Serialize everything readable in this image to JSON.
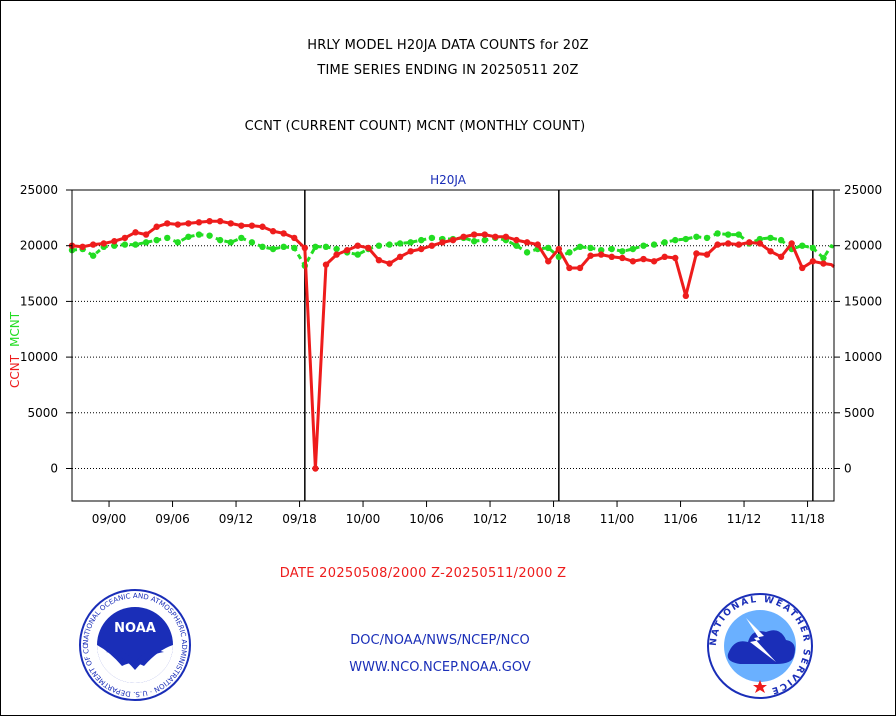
{
  "header": {
    "line1": "HRLY MODEL H20JA DATA COUNTS for 20Z",
    "line2": "TIME SERIES ENDING IN 20250511 20Z",
    "line3": "CCNT (CURRENT COUNT) MCNT (MONTHLY COUNT)"
  },
  "footer": {
    "date_range": "DATE 20250508/2000 Z-20250511/2000 Z",
    "path": "DOC/NOAA/NWS/NCEP/NCO",
    "url": "WWW.NCO.NCEP.NOAA.GOV"
  },
  "logos": {
    "noaa_text": "NOAA",
    "noaa_ring": "NATIONAL OCEANIC AND ATMOSPHERIC ADMINISTRATION · U.S. DEPARTMENT OF COMMERCE",
    "nws_ring": "NATIONAL WEATHER SERVICE"
  },
  "colors": {
    "ccnt": "#ee1c1c",
    "mcnt": "#22dd22",
    "title_blue": "#1a2eb8",
    "axis": "#000000"
  },
  "chart_data": {
    "type": "line",
    "title": "H20JA",
    "ylabel_left": [
      "CCNT",
      "MCNT"
    ],
    "ylim": [
      -2800,
      25000
    ],
    "yticks": [
      0,
      5000,
      10000,
      15000,
      20000,
      25000
    ],
    "xlim": [
      0,
      72
    ],
    "xticks": [
      {
        "x": 3.5,
        "label": "09/00"
      },
      {
        "x": 9.5,
        "label": "09/06"
      },
      {
        "x": 15.5,
        "label": "09/12"
      },
      {
        "x": 21.5,
        "label": "09/18"
      },
      {
        "x": 27.5,
        "label": "10/00"
      },
      {
        "x": 33.5,
        "label": "10/06"
      },
      {
        "x": 39.5,
        "label": "10/12"
      },
      {
        "x": 45.5,
        "label": "10/18"
      },
      {
        "x": 51.5,
        "label": "11/00"
      },
      {
        "x": 57.5,
        "label": "11/06"
      },
      {
        "x": 63.5,
        "label": "11/12"
      },
      {
        "x": 69.5,
        "label": "11/18"
      }
    ],
    "day_boundaries": [
      22,
      46,
      70
    ],
    "grid": "horizontal dotted",
    "series": [
      {
        "name": "CCNT",
        "color": "#ee1c1c",
        "values": [
          20000,
          19900,
          20100,
          20200,
          20400,
          20700,
          21200,
          21000,
          21700,
          22000,
          21900,
          22000,
          22100,
          22200,
          22200,
          22000,
          21800,
          21800,
          21700,
          21300,
          21100,
          20700,
          19800,
          0,
          18300,
          19200,
          19600,
          20000,
          19800,
          18700,
          18400,
          19000,
          19500,
          19700,
          20000,
          20300,
          20500,
          20800,
          21000,
          21000,
          20800,
          20800,
          20500,
          20300,
          20100,
          18600,
          19700,
          18000,
          18000,
          19100,
          19200,
          19000,
          18900,
          18600,
          18800,
          18600,
          19000,
          18900,
          15500,
          19300,
          19200,
          20100,
          20200,
          20100,
          20300,
          20200,
          19500,
          19000,
          20200,
          18000,
          18600,
          18400
        ]
      },
      {
        "name": "MCNT",
        "color": "#22dd22",
        "values": [
          19600,
          19700,
          19100,
          19900,
          20000,
          20100,
          20100,
          20300,
          20500,
          20700,
          20300,
          20800,
          21000,
          20900,
          20500,
          20300,
          20700,
          20300,
          19900,
          19700,
          19900,
          19800,
          18200,
          19900,
          19900,
          19700,
          19400,
          19200,
          19700,
          20000,
          20100,
          20200,
          20300,
          20500,
          20700,
          20600,
          20600,
          20700,
          20400,
          20500,
          20700,
          20500,
          20000,
          19400,
          19700,
          19800,
          19000,
          19400,
          19900,
          19800,
          19600,
          19700,
          19500,
          19700,
          20000,
          20100,
          20300,
          20500,
          20600,
          20800,
          20700,
          21100,
          21000,
          21000,
          20200,
          20600,
          20700,
          20500,
          19700,
          20000,
          19800,
          18900
        ]
      }
    ],
    "tail": {
      "ccnt": [
        18300,
        18100,
        17800,
        17400
      ],
      "mcnt": [
        20000,
        19800,
        19700,
        19600
      ]
    }
  }
}
